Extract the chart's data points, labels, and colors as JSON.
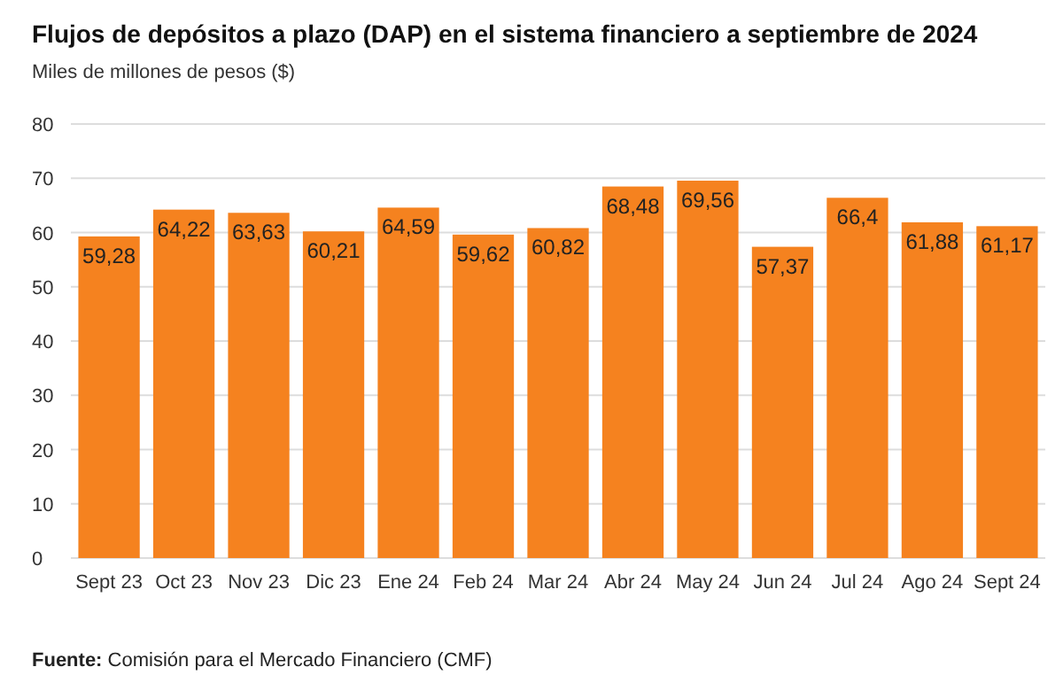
{
  "chart_data": {
    "type": "bar",
    "title": "Flujos de depósitos a plazo (DAP) en el sistema financiero a septiembre de 2024",
    "subtitle": "Miles de millones de pesos ($)",
    "categories": [
      "Sept 23",
      "Oct 23",
      "Nov 23",
      "Dic 23",
      "Ene 24",
      "Feb 24",
      "Mar 24",
      "Abr 24",
      "May 24",
      "Jun 24",
      "Jul 24",
      "Ago 24",
      "Sept 24"
    ],
    "values": [
      59.28,
      64.22,
      63.63,
      60.21,
      64.59,
      59.62,
      60.82,
      68.48,
      69.56,
      57.37,
      66.4,
      61.88,
      61.17
    ],
    "value_labels": [
      "59,28",
      "64,22",
      "63,63",
      "60,21",
      "64,59",
      "59,62",
      "60,82",
      "68,48",
      "69,56",
      "57,37",
      "66,4",
      "61,88",
      "61,17"
    ],
    "color": "#f5821f",
    "ylim": [
      0,
      80
    ],
    "yticks": [
      0,
      10,
      20,
      30,
      40,
      50,
      60,
      70,
      80
    ],
    "grid": "y",
    "annotations": [
      "Fuente: Comisión para el Mercado Financiero (CMF)"
    ]
  }
}
